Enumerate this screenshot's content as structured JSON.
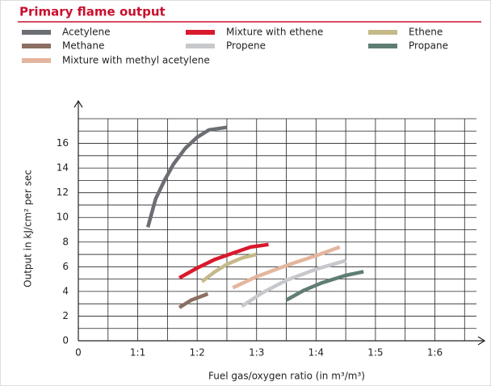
{
  "chart_data": {
    "type": "line",
    "title": "Primary flame output",
    "xlabel": "Fuel gas/oxygen ratio (in m³/m³)",
    "ylabel": "Output in kJ/cm² per sec",
    "xlim": [
      0,
      6.7
    ],
    "ylim": [
      0,
      18
    ],
    "xticks": [
      0,
      {
        "value": 1,
        "label": "1:1"
      },
      {
        "value": 2,
        "label": "1:2"
      },
      {
        "value": 3,
        "label": "1:3"
      },
      {
        "value": 4,
        "label": "1:4"
      },
      {
        "value": 5,
        "label": "1:5"
      },
      {
        "value": 6,
        "label": "1:6"
      }
    ],
    "yticks": [
      0,
      2,
      4,
      6,
      8,
      10,
      12,
      14,
      16
    ],
    "xgrid": [
      0,
      0.5,
      1,
      1.5,
      2,
      2.5,
      3,
      3.5,
      4,
      4.5,
      5,
      5.5,
      6,
      6.5
    ],
    "ygrid": [
      0,
      1,
      2,
      3,
      4,
      5,
      6,
      7,
      8,
      9,
      10,
      11,
      12,
      13,
      14,
      15,
      16,
      17,
      18
    ],
    "grid": true,
    "series": [
      {
        "name": "Acetylene",
        "color": "#6b6e72",
        "x": [
          1.17,
          1.3,
          1.45,
          1.6,
          1.8,
          2.0,
          2.2,
          2.5
        ],
        "values": [
          9.2,
          11.5,
          13,
          14.3,
          15.6,
          16.5,
          17.1,
          17.3
        ]
      },
      {
        "name": "Mixture with ethene",
        "color": "#d9192c",
        "x": [
          1.7,
          2.0,
          2.3,
          2.6,
          2.9,
          3.2
        ],
        "values": [
          5.1,
          5.9,
          6.6,
          7.1,
          7.6,
          7.8
        ]
      },
      {
        "name": "Ethene",
        "color": "#c5b98a",
        "x": [
          2.08,
          2.3,
          2.5,
          2.75,
          3.0
        ],
        "values": [
          4.8,
          5.6,
          6.2,
          6.7,
          7.0
        ]
      },
      {
        "name": "Methane",
        "color": "#8b6f62",
        "x": [
          1.7,
          1.9,
          2.18
        ],
        "values": [
          2.7,
          3.3,
          3.8
        ]
      },
      {
        "name": "Propene",
        "color": "#c6c8cc",
        "x": [
          2.75,
          3.1,
          3.5,
          4.0,
          4.5
        ],
        "values": [
          2.8,
          3.9,
          4.9,
          5.8,
          6.5
        ]
      },
      {
        "name": "Propane",
        "color": "#5f7d74",
        "x": [
          3.5,
          3.8,
          4.1,
          4.5,
          4.8
        ],
        "values": [
          3.3,
          4.1,
          4.7,
          5.3,
          5.6
        ]
      },
      {
        "name": "Mixture with methyl acetylene",
        "color": "#e4b59e",
        "x": [
          2.6,
          3.0,
          3.5,
          4.0,
          4.4
        ],
        "values": [
          4.3,
          5.2,
          6.1,
          6.9,
          7.6
        ]
      }
    ]
  }
}
